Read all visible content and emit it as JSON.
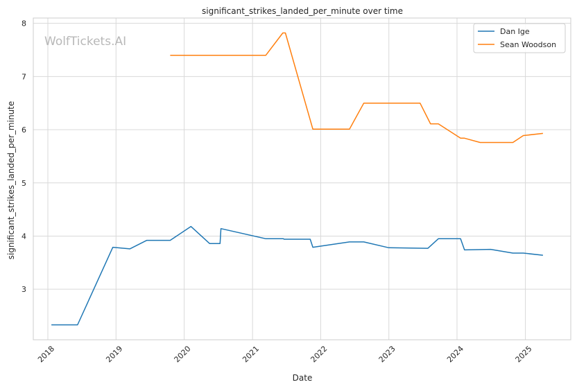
{
  "chart_data": {
    "type": "line",
    "title": "significant_strikes_landed_per_minute over time",
    "xlabel": "Date",
    "ylabel": "significant_strikes_landed_per_minute",
    "watermark": "WolfTickets.AI",
    "xlim": [
      "2017-10-15",
      "2025-09-01"
    ],
    "ylim": [
      2.05,
      8.1
    ],
    "x_ticks": [
      "2018",
      "2019",
      "2020",
      "2021",
      "2022",
      "2023",
      "2024",
      "2025"
    ],
    "y_ticks": [
      "3",
      "4",
      "5",
      "6",
      "7",
      "8"
    ],
    "grid": true,
    "legend_position": "top-right",
    "series": [
      {
        "name": "Dan Ige",
        "color": "#1f77b4",
        "points": [
          [
            "2018-01-20",
            2.33
          ],
          [
            "2018-06-09",
            2.33
          ],
          [
            "2018-12-15",
            3.79
          ],
          [
            "2019-03-16",
            3.76
          ],
          [
            "2019-06-15",
            3.92
          ],
          [
            "2019-10-18",
            3.92
          ],
          [
            "2020-02-06",
            4.18
          ],
          [
            "2020-05-16",
            3.86
          ],
          [
            "2020-07-11",
            3.86
          ],
          [
            "2020-07-16",
            4.14
          ],
          [
            "2021-03-13",
            3.95
          ],
          [
            "2021-06-15",
            3.95
          ],
          [
            "2021-06-19",
            3.94
          ],
          [
            "2021-11-06",
            3.94
          ],
          [
            "2021-11-20",
            3.79
          ],
          [
            "2022-06-04",
            3.89
          ],
          [
            "2022-08-20",
            3.89
          ],
          [
            "2023-01-01",
            3.78
          ],
          [
            "2023-07-29",
            3.77
          ],
          [
            "2023-09-23",
            3.95
          ],
          [
            "2024-01-20",
            3.95
          ],
          [
            "2024-02-10",
            3.74
          ],
          [
            "2024-06-29",
            3.75
          ],
          [
            "2024-10-26",
            3.68
          ],
          [
            "2024-12-21",
            3.68
          ],
          [
            "2025-04-05",
            3.64
          ]
        ]
      },
      {
        "name": "Sean Woodson",
        "color": "#ff7f0e",
        "points": [
          [
            "2019-10-18",
            7.4
          ],
          [
            "2021-03-13",
            7.4
          ],
          [
            "2021-06-12",
            7.82
          ],
          [
            "2021-06-26",
            7.82
          ],
          [
            "2021-11-20",
            6.01
          ],
          [
            "2022-06-04",
            6.01
          ],
          [
            "2022-08-20",
            6.5
          ],
          [
            "2023-06-17",
            6.5
          ],
          [
            "2023-08-12",
            6.11
          ],
          [
            "2023-09-23",
            6.11
          ],
          [
            "2024-01-20",
            5.84
          ],
          [
            "2024-02-10",
            5.84
          ],
          [
            "2024-05-04",
            5.76
          ],
          [
            "2024-10-26",
            5.76
          ],
          [
            "2024-12-21",
            5.89
          ],
          [
            "2025-04-05",
            5.93
          ]
        ]
      }
    ]
  }
}
